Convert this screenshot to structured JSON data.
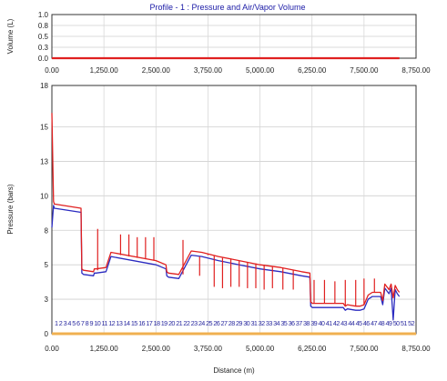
{
  "chart_data": [
    {
      "type": "line",
      "title": "Profile - 1 : Pressure and Air/Vapor Volume",
      "ylabel": "Volume (L)",
      "ylim": [
        0,
        1
      ],
      "yticks": [
        "1.0",
        "0.8",
        "0.5",
        "0.3",
        "0.0"
      ],
      "ytick_values": [
        1.0,
        0.75,
        0.5,
        0.25,
        0.0
      ],
      "xlim": [
        0,
        8750
      ],
      "xticks": [
        "0.00",
        "1,250.00",
        "2,500.00",
        "3,750.00",
        "5,000.00",
        "6,250.00",
        "7,500.00",
        "8,750.00"
      ],
      "xtick_values": [
        0,
        1250,
        2500,
        3750,
        5000,
        6250,
        7500,
        8750
      ],
      "grid": true,
      "series": [
        {
          "color": "#e02020",
          "x": [
            0,
            8350
          ],
          "y": [
            0,
            0
          ]
        }
      ]
    },
    {
      "type": "line",
      "xlabel": "Distance (m)",
      "ylabel": "Pressure (bars)",
      "ylim": [
        0,
        18
      ],
      "yticks": [
        "18",
        "15",
        "13",
        "10",
        "8",
        "5",
        "3",
        "0"
      ],
      "ytick_values": [
        18,
        15,
        12.5,
        10,
        7.5,
        5,
        2.5,
        0
      ],
      "xlim": [
        0,
        8750
      ],
      "xticks": [
        "0.00",
        "1,250.00",
        "2,500.00",
        "3,750.00",
        "5,000.00",
        "6,250.00",
        "7,500.00",
        "8,750.00"
      ],
      "xtick_values": [
        0,
        1250,
        2500,
        3750,
        5000,
        6250,
        7500,
        8750
      ],
      "grid": true,
      "series": [
        {
          "color": "#e02020",
          "x": [
            0,
            40,
            60,
            700,
            720,
            760,
            1000,
            1020,
            1060,
            1300,
            1420,
            2500,
            2740,
            2760,
            2800,
            3050,
            3350,
            3600,
            4000,
            4500,
            5000,
            5500,
            6000,
            6200,
            6220,
            6260,
            6500,
            7000,
            7050,
            7100,
            7300,
            7400,
            7500,
            7600,
            7700,
            7800,
            7900,
            7950,
            8000,
            8100,
            8150,
            8200,
            8250,
            8300,
            8350
          ],
          "y": [
            16,
            9.6,
            9.4,
            9.1,
            4.7,
            4.6,
            4.5,
            4.7,
            4.7,
            4.8,
            5.9,
            5.3,
            5.0,
            4.5,
            4.4,
            4.3,
            6.0,
            5.9,
            5.6,
            5.3,
            5.0,
            4.8,
            4.5,
            4.4,
            2.3,
            2.2,
            2.2,
            2.2,
            2.0,
            2.1,
            2.0,
            2.0,
            2.1,
            2.8,
            3.0,
            3.0,
            3.0,
            2.4,
            3.6,
            3.2,
            3.6,
            2.6,
            3.5,
            3.2,
            3.0
          ]
        },
        {
          "color": "#2a2ac0",
          "x": [
            0,
            40,
            60,
            700,
            720,
            760,
            1000,
            1020,
            1060,
            1300,
            1420,
            2500,
            2740,
            2760,
            2800,
            3050,
            3350,
            3600,
            4000,
            4500,
            5000,
            5500,
            6000,
            6200,
            6220,
            6260,
            6500,
            7000,
            7050,
            7100,
            7300,
            7400,
            7500,
            7600,
            7700,
            7800,
            7900,
            7950,
            8000,
            8100,
            8150,
            8200,
            8250,
            8300,
            8350
          ],
          "y": [
            7.7,
            9.3,
            9.1,
            8.8,
            4.4,
            4.3,
            4.2,
            4.4,
            4.4,
            4.5,
            5.6,
            5.0,
            4.7,
            4.2,
            4.1,
            4.0,
            5.7,
            5.6,
            5.3,
            5.0,
            4.7,
            4.5,
            4.2,
            4.1,
            2.0,
            1.9,
            1.9,
            1.9,
            1.7,
            1.8,
            1.7,
            1.7,
            1.8,
            2.5,
            2.7,
            2.7,
            2.7,
            2.1,
            3.3,
            2.9,
            3.3,
            1.0,
            3.2,
            2.9,
            2.7
          ]
        }
      ],
      "spikes": [
        {
          "x": 1100,
          "top": 7.6,
          "base": 4.6
        },
        {
          "x": 1650,
          "top": 7.2,
          "base": 5.7
        },
        {
          "x": 1850,
          "top": 7.2,
          "base": 5.6
        },
        {
          "x": 2050,
          "top": 7.0,
          "base": 5.5
        },
        {
          "x": 2250,
          "top": 7.0,
          "base": 5.4
        },
        {
          "x": 2450,
          "top": 7.0,
          "base": 5.3
        },
        {
          "x": 3150,
          "top": 6.8,
          "base": 4.3
        },
        {
          "x": 3550,
          "top": 5.6,
          "base": 4.2
        },
        {
          "x": 3750,
          "top": 5.7,
          "base": 5.8
        },
        {
          "x": 3900,
          "top": 3.4,
          "base": 5.7
        },
        {
          "x": 4100,
          "top": 3.3,
          "base": 5.5
        },
        {
          "x": 4300,
          "top": 3.4,
          "base": 5.4
        },
        {
          "x": 4500,
          "top": 3.4,
          "base": 5.3
        },
        {
          "x": 4700,
          "top": 3.3,
          "base": 5.2
        },
        {
          "x": 4900,
          "top": 3.3,
          "base": 5.1
        },
        {
          "x": 5100,
          "top": 3.2,
          "base": 5.0
        },
        {
          "x": 5300,
          "top": 3.3,
          "base": 4.9
        },
        {
          "x": 5550,
          "top": 3.2,
          "base": 4.8
        },
        {
          "x": 5800,
          "top": 3.2,
          "base": 4.6
        },
        {
          "x": 6300,
          "top": 3.9,
          "base": 2.2
        },
        {
          "x": 6550,
          "top": 3.9,
          "base": 2.2
        },
        {
          "x": 6800,
          "top": 3.8,
          "base": 2.2
        },
        {
          "x": 7050,
          "top": 3.9,
          "base": 2.0
        },
        {
          "x": 7300,
          "top": 3.9,
          "base": 2.0
        },
        {
          "x": 7500,
          "top": 4.0,
          "base": 2.1
        },
        {
          "x": 7750,
          "top": 4.0,
          "base": 3.0
        }
      ],
      "node_labels": "1 2 3 4 5 6 7 8 9 10 11 12 13 14 15 16 17 18 19 20 21 22 23 24 25 26 27 28 29 30 31 32 33 34 35 36 37 38 39 40 41 42 43 44 45 46 47 48 49 50 51 52",
      "baseline_color": "#f0b050"
    }
  ]
}
